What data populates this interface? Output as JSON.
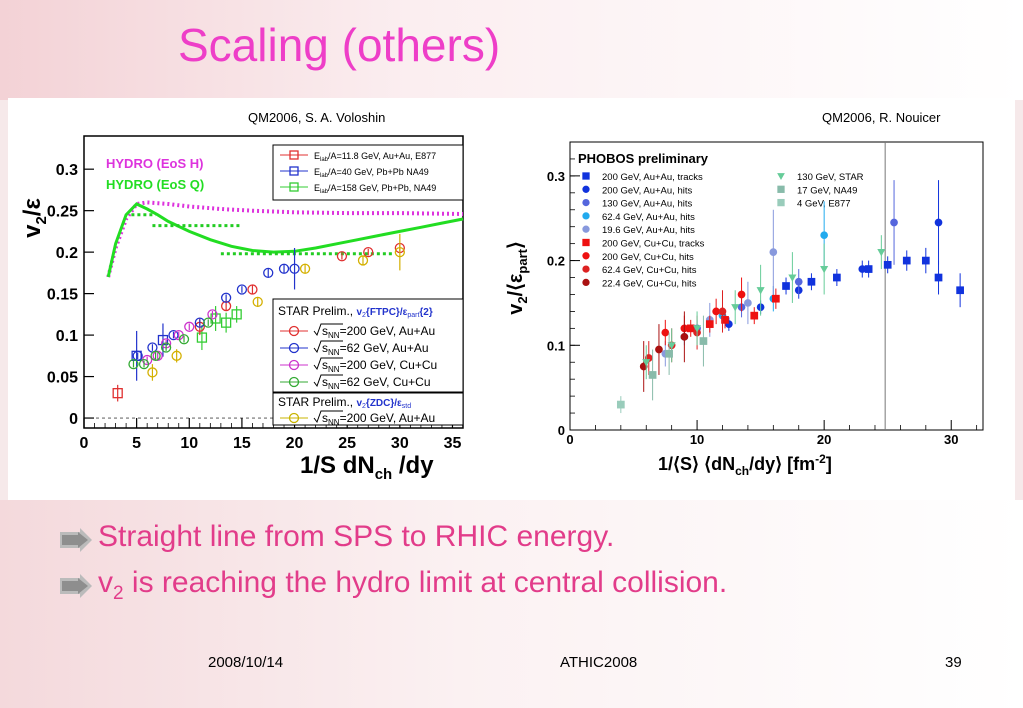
{
  "slide": {
    "title": "Scaling (others)",
    "bullets": [
      {
        "text": "Straight line from SPS to RHIC energy."
      },
      {
        "pre": "v",
        "sub": "2",
        "post": " is reaching the hydro limit at central collision."
      }
    ],
    "footer": {
      "date": "2008/10/14",
      "event": "ATHIC2008",
      "page": "39"
    }
  },
  "colors": {
    "title": "#ee3ec8",
    "bullet_text": "#e23c8a"
  },
  "chart_data": [
    {
      "type": "scatter",
      "credit": "QM2006, S. A. Voloshin",
      "ylabel_main": "v",
      "ylabel_sub": "2",
      "ylabel_tail": "/ε",
      "xlabel_main": "1/S dN",
      "xlabel_sub": "ch",
      "xlabel_tail": " /dy",
      "xlim": [
        0,
        36
      ],
      "ylim": [
        -0.012,
        0.34
      ],
      "xticks": [
        0,
        5,
        10,
        15,
        20,
        25,
        30,
        35
      ],
      "yticks": [
        0,
        0.05,
        0.1,
        0.15,
        0.2,
        0.25,
        0.3
      ],
      "ytick_labels": [
        "0",
        "0.05",
        "0.1",
        "0.15",
        "0.2",
        "0.25",
        "0.3"
      ],
      "hydro_labels": [
        {
          "text": "HYDRO (EoS H)",
          "color": "#dd33dd"
        },
        {
          "text": "HYDRO (EoS Q)",
          "color": "#22dd22"
        }
      ],
      "hydro_curves": [
        {
          "name": "HYDRO (EoS H)",
          "color": "#dd33dd",
          "style": "dotted",
          "x": [
            2.3,
            3,
            4,
            5,
            6,
            8,
            10,
            13,
            16,
            20,
            25,
            30,
            36
          ],
          "y": [
            0.17,
            0.205,
            0.24,
            0.258,
            0.26,
            0.258,
            0.255,
            0.252,
            0.25,
            0.248,
            0.247,
            0.247,
            0.246
          ]
        },
        {
          "name": "HYDRO (EoS Q)",
          "color": "#22dd22",
          "style": "solid",
          "x": [
            2.3,
            3,
            4,
            5,
            6,
            7,
            8,
            10,
            12,
            14,
            16,
            18,
            20,
            22,
            24,
            26,
            28,
            30,
            32,
            34,
            36
          ],
          "y": [
            0.17,
            0.21,
            0.245,
            0.258,
            0.252,
            0.245,
            0.237,
            0.225,
            0.215,
            0.207,
            0.202,
            0.2,
            0.201,
            0.205,
            0.21,
            0.215,
            0.22,
            0.225,
            0.23,
            0.235,
            0.24
          ]
        }
      ],
      "dotted_segments": [
        {
          "x": [
            4.5,
            6.8
          ],
          "y": 0.245
        },
        {
          "x": [
            6.5,
            15
          ],
          "y": 0.232
        },
        {
          "x": [
            13,
            29.5
          ],
          "y": 0.198
        }
      ],
      "legend_top": [
        {
          "pre": "E",
          "sub": "lab",
          "post": "/A=11.8 GeV, Au+Au, E877",
          "color": "#e03030"
        },
        {
          "pre": "E",
          "sub": "lab",
          "post": "/A=40 GeV, Pb+Pb NA49",
          "color": "#2233cc"
        },
        {
          "pre": "E",
          "sub": "lab",
          "post": "/A=158 GeV, Pb+Pb, NA49",
          "color": "#33cc33"
        }
      ],
      "legend_star_header": {
        "pre": "STAR Prelim.,",
        "v": "v",
        "vsub": "2",
        "method": "{FTPC}/ε",
        "esub": "part",
        "tail": "{2}"
      },
      "legend_star": [
        {
          "text": "=200 GeV, Au+Au",
          "color": "#e03030"
        },
        {
          "text": "=62 GeV, Au+Au",
          "color": "#2233cc"
        },
        {
          "text": "=200 GeV, Cu+Cu",
          "color": "#cc33cc"
        },
        {
          "text": "=62 GeV, Cu+Cu",
          "color": "#33aa33"
        }
      ],
      "legend_zdc_header": {
        "pre": "STAR Prelim.,",
        "v": "v",
        "vsub": "2",
        "method": "{ZDC}/ε",
        "esub": "std"
      },
      "legend_zdc": [
        {
          "text": "=200 GeV, Au+Au",
          "color": "#c8b400"
        }
      ],
      "sqrt_label": "s",
      "sqrt_sub": "NN",
      "series": [
        {
          "name": "E877 Au+Au",
          "color": "#e03030",
          "marker": "square",
          "points": [
            [
              3.2,
              0.03,
              0.01
            ]
          ]
        },
        {
          "name": "NA49 40 GeV",
          "color": "#2233cc",
          "marker": "square",
          "points": [
            [
              5,
              0.075,
              0.03
            ],
            [
              7.5,
              0.094,
              0.02
            ]
          ]
        },
        {
          "name": "NA49 158 GeV",
          "color": "#33cc33",
          "marker": "square",
          "points": [
            [
              11.2,
              0.097,
              0.015
            ],
            [
              12.5,
              0.12,
              0.015
            ],
            [
              13.5,
              0.115,
              0.012
            ],
            [
              14.5,
              0.125,
              0.01
            ]
          ]
        },
        {
          "name": "STAR 200 AuAu",
          "color": "#e03030",
          "marker": "circle",
          "points": [
            [
              11,
              0.11,
              0.01
            ],
            [
              13.5,
              0.135,
              0.006
            ],
            [
              16,
              0.155,
              0.005
            ],
            [
              24.5,
              0.195,
              0.004
            ],
            [
              27,
              0.2,
              0.004
            ],
            [
              30,
              0.205,
              0.004
            ]
          ]
        },
        {
          "name": "STAR 62 AuAu",
          "color": "#2233cc",
          "marker": "circle",
          "points": [
            [
              5.1,
              0.075,
              0.004
            ],
            [
              6.5,
              0.085,
              0.004
            ],
            [
              8.5,
              0.1,
              0.004
            ],
            [
              11,
              0.115,
              0.004
            ],
            [
              13.5,
              0.145,
              0.004
            ],
            [
              15,
              0.155,
              0.004
            ],
            [
              17.5,
              0.175,
              0.005
            ],
            [
              19,
              0.18,
              0.005
            ],
            [
              20,
              0.18,
              0.025
            ]
          ]
        },
        {
          "name": "STAR 200 CuCu",
          "color": "#cc33cc",
          "marker": "circle",
          "points": [
            [
              6,
              0.07,
              0.004
            ],
            [
              7,
              0.075,
              0.004
            ],
            [
              7.8,
              0.09,
              0.004
            ],
            [
              9,
              0.1,
              0.004
            ],
            [
              10,
              0.11,
              0.004
            ],
            [
              12.2,
              0.125,
              0.004
            ]
          ]
        },
        {
          "name": "STAR 62 CuCu",
          "color": "#33aa33",
          "marker": "circle",
          "points": [
            [
              4.7,
              0.065,
              0.004
            ],
            [
              5.7,
              0.065,
              0.004
            ],
            [
              6.8,
              0.075,
              0.004
            ],
            [
              7.8,
              0.085,
              0.004
            ],
            [
              9.5,
              0.095,
              0.004
            ],
            [
              11.8,
              0.115,
              0.004
            ]
          ]
        },
        {
          "name": "STAR ZDC 200 AuAu",
          "color": "#d4b000",
          "marker": "circle",
          "points": [
            [
              6.5,
              0.055,
              0.01
            ],
            [
              8.8,
              0.075,
              0.008
            ],
            [
              16.5,
              0.14,
              0.006
            ],
            [
              21,
              0.18,
              0.006
            ],
            [
              26.5,
              0.19,
              0.006
            ],
            [
              30,
              0.2,
              0.022
            ]
          ]
        }
      ]
    },
    {
      "type": "scatter",
      "credit": "QM2006, R. Nouicer",
      "title": "PHOBOS preliminary",
      "ylabel_main": "v",
      "ylabel_sub": "2",
      "ylabel_tail": "/⟨ε",
      "ylabel_sub2": "part",
      "ylabel_end": "⟩",
      "xlabel_main": "1/⟨S⟩ ⟨dN",
      "xlabel_sub": "ch",
      "xlabel_tail": "/dy⟩ [fm",
      "xlabel_sup": "-2",
      "xlabel_end": "]",
      "xlim": [
        0,
        32.5
      ],
      "ylim": [
        0,
        0.34
      ],
      "xticks": [
        0,
        10,
        20,
        30
      ],
      "yticks": [
        0,
        0.1,
        0.2,
        0.3
      ],
      "ytick_labels": [
        "0",
        "0.1",
        "0.2",
        "0.3"
      ],
      "vline_x": 24.8,
      "legend_left": [
        {
          "text": "200 GeV, Au+Au, tracks",
          "color": "#1133dd",
          "marker": "square"
        },
        {
          "text": "200 GeV, Au+Au, hits",
          "color": "#1133dd",
          "marker": "circle"
        },
        {
          "text": "130 GeV, Au+Au, hits",
          "color": "#5566dd",
          "marker": "circle"
        },
        {
          "text": "62.4 GeV, Au+Au, hits",
          "color": "#22aaee",
          "marker": "circle"
        },
        {
          "text": "19.6 GeV, Au+Au, hits",
          "color": "#8899dd",
          "marker": "circle"
        },
        {
          "text": "200 GeV, Cu+Cu, tracks",
          "color": "#ee1111",
          "marker": "square"
        },
        {
          "text": "200 GeV, Cu+Cu, hits",
          "color": "#ee1111",
          "marker": "circle"
        },
        {
          "text": "62.4 GeV, Cu+Cu, hits",
          "color": "#dd2222",
          "marker": "circle"
        },
        {
          "text": "22.4 GeV, Cu+Cu, hits",
          "color": "#aa1111",
          "marker": "circle"
        }
      ],
      "legend_right": [
        {
          "text": "130 GeV, STAR",
          "color": "#66cc99",
          "marker": "triangle"
        },
        {
          "text": "17 GeV, NA49",
          "color": "#88bbaa",
          "marker": "square"
        },
        {
          "text": "4 GeV, E877",
          "color": "#99ccbb",
          "marker": "square"
        }
      ],
      "series": [
        {
          "name": "200 GeV, Au+Au, tracks",
          "color": "#1133dd",
          "marker": "square",
          "points": [
            [
              17,
              0.17,
              0.01
            ],
            [
              19,
              0.175,
              0.01
            ],
            [
              21,
              0.18,
              0.01
            ],
            [
              23.5,
              0.19,
              0.01
            ],
            [
              25,
              0.195,
              0.01
            ],
            [
              26.5,
              0.2,
              0.012
            ],
            [
              28,
              0.2,
              0.015
            ],
            [
              29,
              0.18,
              0.02
            ],
            [
              30.7,
              0.165,
              0.02
            ]
          ]
        },
        {
          "name": "200 GeV, Au+Au, hits",
          "color": "#1133dd",
          "marker": "circle",
          "points": [
            [
              12.5,
              0.125,
              0.008
            ],
            [
              15,
              0.145,
              0.008
            ],
            [
              18,
              0.165,
              0.01
            ],
            [
              23,
              0.19,
              0.01
            ],
            [
              29,
              0.245,
              0.05
            ]
          ]
        },
        {
          "name": "130 GeV, Au+Au, hits",
          "color": "#5566dd",
          "marker": "circle",
          "points": [
            [
              10,
              0.12,
              0.01
            ],
            [
              13.5,
              0.145,
              0.012
            ],
            [
              18,
              0.175,
              0.015
            ],
            [
              25.5,
              0.245,
              0.05
            ]
          ]
        },
        {
          "name": "62.4 GeV, Au+Au, hits",
          "color": "#22aaee",
          "marker": "circle",
          "points": [
            [
              9,
              0.11,
              0.01
            ],
            [
              12,
              0.135,
              0.012
            ],
            [
              16,
              0.155,
              0.015
            ],
            [
              20,
              0.23,
              0.04
            ]
          ]
        },
        {
          "name": "19.6 GeV, Au+Au, hits",
          "color": "#8899dd",
          "marker": "circle",
          "points": [
            [
              7.5,
              0.09,
              0.015
            ],
            [
              11,
              0.13,
              0.02
            ],
            [
              14,
              0.15,
              0.025
            ],
            [
              16,
              0.21,
              0.05
            ]
          ]
        },
        {
          "name": "200 GeV, Cu+Cu, tracks",
          "color": "#ee1111",
          "marker": "square",
          "points": [
            [
              9.5,
              0.12,
              0.01
            ],
            [
              11,
              0.125,
              0.01
            ],
            [
              12.2,
              0.13,
              0.01
            ],
            [
              14.5,
              0.135,
              0.01
            ],
            [
              16.2,
              0.155,
              0.012
            ]
          ]
        },
        {
          "name": "200 GeV, Cu+Cu, hits",
          "color": "#ee1111",
          "marker": "circle",
          "points": [
            [
              7.5,
              0.115,
              0.015
            ],
            [
              9,
              0.12,
              0.015
            ],
            [
              11.5,
              0.14,
              0.015
            ],
            [
              13.5,
              0.16,
              0.02
            ]
          ]
        },
        {
          "name": "62.4 GeV, Cu+Cu, hits",
          "color": "#dd2222",
          "marker": "circle",
          "points": [
            [
              6.2,
              0.085,
              0.02
            ],
            [
              8,
              0.1,
              0.02
            ],
            [
              10,
              0.115,
              0.02
            ],
            [
              12,
              0.14,
              0.025
            ]
          ]
        },
        {
          "name": "22.4 GeV, Cu+Cu, hits",
          "color": "#aa1111",
          "marker": "circle",
          "points": [
            [
              5.8,
              0.075,
              0.03
            ],
            [
              7,
              0.095,
              0.03
            ],
            [
              9,
              0.11,
              0.03
            ]
          ]
        },
        {
          "name": "130 GeV, STAR",
          "color": "#66cc99",
          "marker": "triangle",
          "points": [
            [
              6,
              0.08,
              0.02
            ],
            [
              8,
              0.1,
              0.02
            ],
            [
              10,
              0.12,
              0.02
            ],
            [
              13,
              0.145,
              0.02
            ],
            [
              15,
              0.165,
              0.03
            ],
            [
              17.5,
              0.18,
              0.03
            ],
            [
              20,
              0.19,
              0.03
            ],
            [
              24.5,
              0.21,
              0.02
            ]
          ]
        },
        {
          "name": "17 GeV, NA49",
          "color": "#88bbaa",
          "marker": "square",
          "points": [
            [
              6.5,
              0.065,
              0.03
            ],
            [
              7.8,
              0.09,
              0.025
            ],
            [
              10.5,
              0.105,
              0.03
            ]
          ]
        },
        {
          "name": "4 GeV, E877",
          "color": "#99ccbb",
          "marker": "square",
          "points": [
            [
              4,
              0.03,
              0.01
            ]
          ]
        }
      ]
    }
  ]
}
